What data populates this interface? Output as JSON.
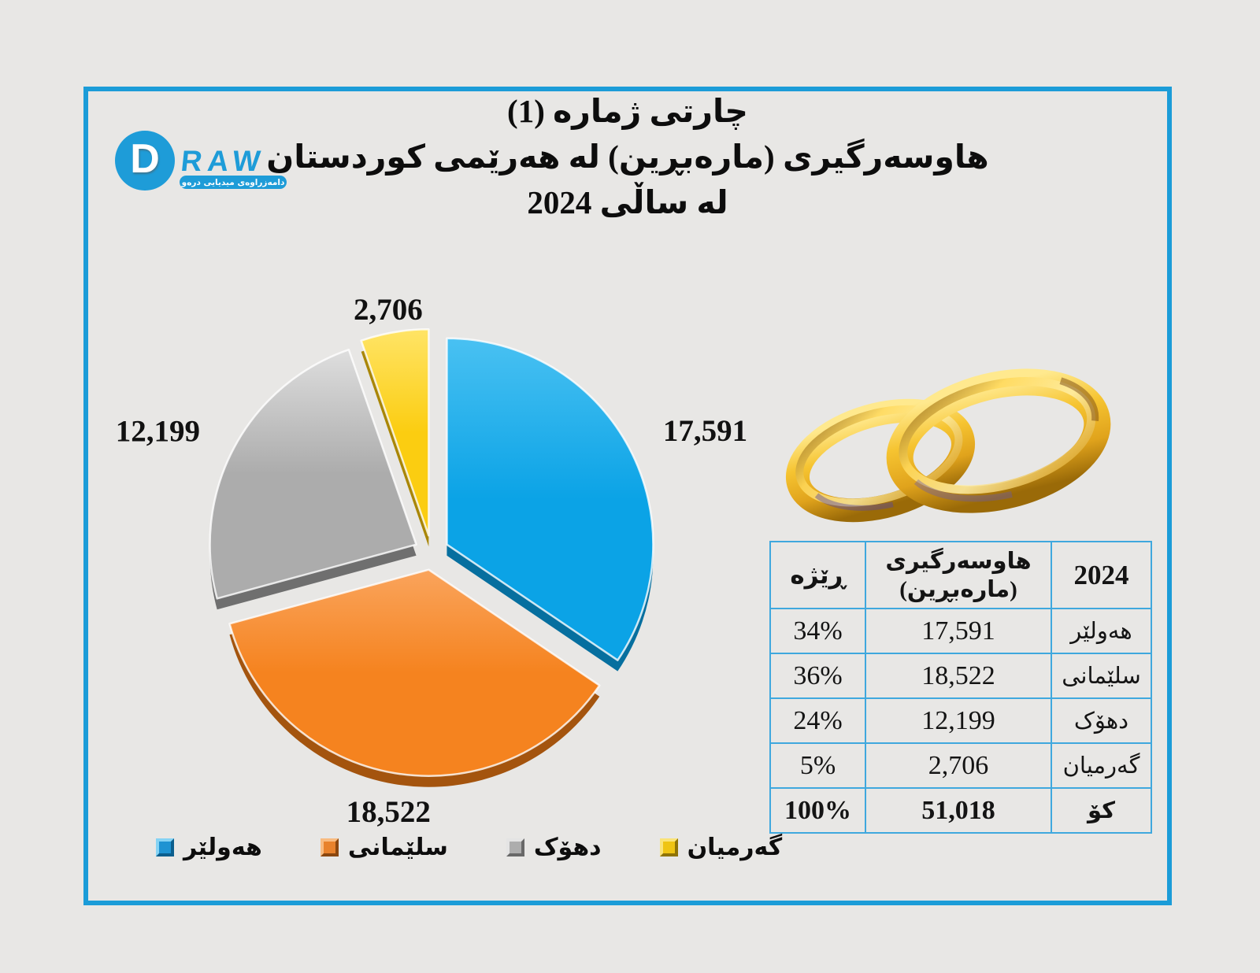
{
  "window": {
    "bg": "#E8E7E5",
    "frame_color": "#1B9CD8"
  },
  "logo": {
    "d_letter": "D",
    "wordmark": "RAW",
    "tagline": "دامەزراوەی میدیایی درەو",
    "brand_color": "#1E9CD8"
  },
  "title": {
    "line1": "چارتی ژماره (1)",
    "line2": "هاوسەرگیری (مارەبڕین) لە هەرێمی کوردستان",
    "line3": "لە ساڵی 2024"
  },
  "chart_data": {
    "type": "pie",
    "title": "هاوسەرگیری (مارەبڕین) لە هەرێمی کوردستان لە ساڵی 2024",
    "start_angle_deg": 0,
    "direction": "clockwise",
    "exploded": true,
    "legend_position": "bottom",
    "total": 51018,
    "series": [
      {
        "name": "هەولێر",
        "value": 17591,
        "percent": "34%",
        "label": "17,591",
        "color": "#0BA3E6",
        "color_light": "#49C1F2",
        "color_dark": "#066F9F",
        "marker": {
          "base": "#1E93D2",
          "light": "#85D3F4",
          "dark": "#0B5E8D"
        }
      },
      {
        "name": "سلێمانی",
        "value": 18522,
        "percent": "36%",
        "label": "18,522",
        "color": "#F5831F",
        "color_light": "#FAA45C",
        "color_dark": "#A4540E",
        "marker": {
          "base": "#E8822C",
          "light": "#F8BB80",
          "dark": "#8A470F"
        }
      },
      {
        "name": "دهۆک",
        "value": 12199,
        "percent": "24%",
        "label": "12,199",
        "color": "#ACACAC",
        "color_light": "#DEDEDE",
        "color_dark": "#6F6F6F",
        "marker": {
          "base": "#ADADAD",
          "light": "#E4E4E4",
          "dark": "#686868"
        }
      },
      {
        "name": "گەرمیان",
        "value": 2706,
        "percent": "5%",
        "label": "2,706",
        "color": "#FBCD11",
        "color_light": "#FFE466",
        "color_dark": "#A98606",
        "marker": {
          "base": "#EFC413",
          "light": "#FAE378",
          "dark": "#8F7406"
        }
      }
    ]
  },
  "table": {
    "border_color": "#3FA8DE",
    "headers": {
      "percent": "ڕێژە",
      "value": "هاوسەرگیری\n(مارەبڕین)",
      "year": "2024"
    },
    "rows": [
      {
        "percent": "34%",
        "value": "17,591",
        "name": "هەولێر"
      },
      {
        "percent": "36%",
        "value": "18,522",
        "name": "سلێمانی"
      },
      {
        "percent": "24%",
        "value": "12,199",
        "name": "دهۆک"
      },
      {
        "percent": "5%",
        "value": "2,706",
        "name": "گەرمیان"
      }
    ],
    "total_row": {
      "percent": "100%",
      "value": "51,018",
      "name": "کۆ"
    }
  }
}
